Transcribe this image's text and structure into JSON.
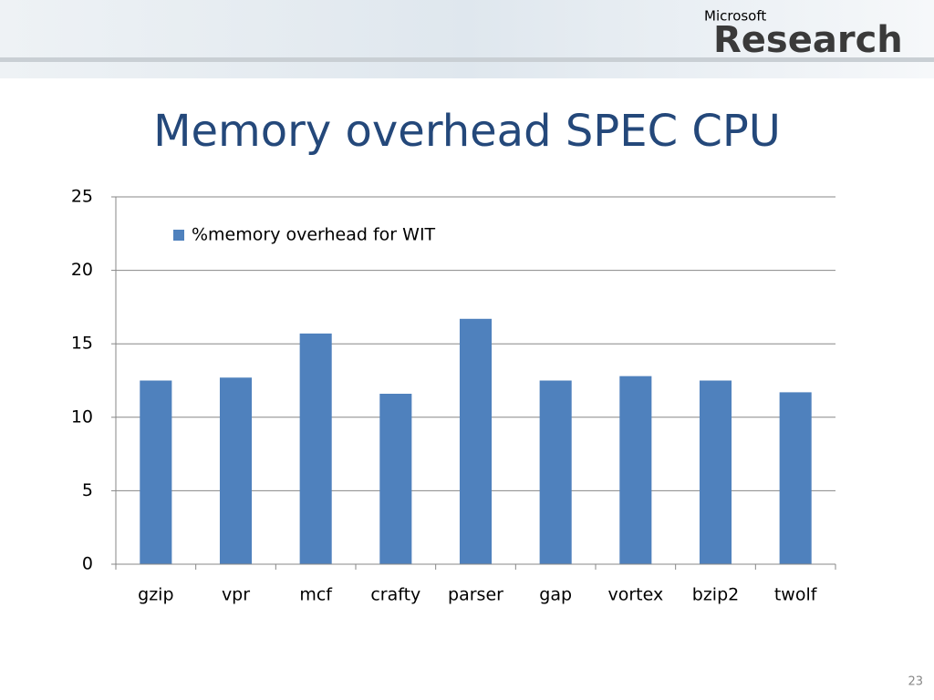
{
  "slide": {
    "logo_small": "Microsoft",
    "logo": "Research",
    "page_number": 23
  },
  "chart_data": {
    "type": "bar",
    "title": "Memory overhead SPEC CPU",
    "categories": [
      "gzip",
      "vpr",
      "mcf",
      "crafty",
      "parser",
      "gap",
      "vortex",
      "bzip2",
      "twolf"
    ],
    "series": [
      {
        "name": "%memory overhead for WIT",
        "color": "#4f81bd",
        "values": [
          12.5,
          12.7,
          15.7,
          11.6,
          16.7,
          12.5,
          12.8,
          12.5,
          11.7
        ]
      }
    ],
    "ylim": [
      0,
      25
    ],
    "yticks": [
      0,
      5,
      10,
      15,
      20,
      25
    ],
    "grid": true,
    "legend": "top-left"
  }
}
